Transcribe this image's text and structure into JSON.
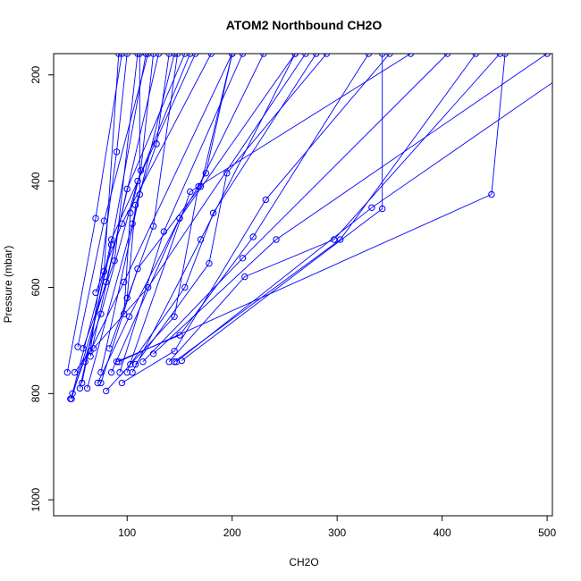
{
  "chart_data": {
    "type": "scatter",
    "title": "ATOM2 Northbound CH2O",
    "xlabel": "CH2O",
    "ylabel": "Pressure (mbar)",
    "xlim": [
      30,
      505
    ],
    "ylim": [
      1030,
      160
    ],
    "y_reversed": true,
    "x_ticks": [
      100,
      200,
      300,
      400,
      500
    ],
    "y_ticks": [
      200,
      400,
      600,
      800,
      1000
    ],
    "grid": false,
    "legend": "none",
    "color": "#0000ff",
    "series": [
      {
        "points": [
          [
            46,
            810
          ],
          [
            75,
            650
          ],
          [
            110,
            400
          ],
          [
            160,
            160
          ]
        ]
      },
      {
        "points": [
          [
            47,
            810
          ],
          [
            80,
            590
          ],
          [
            130,
            160
          ]
        ]
      },
      {
        "points": [
          [
            43,
            760
          ],
          [
            70,
            470
          ],
          [
            95,
            160
          ]
        ]
      },
      {
        "points": [
          [
            50,
            760
          ],
          [
            65,
            720
          ],
          [
            90,
            345
          ],
          [
            100,
            160
          ]
        ]
      },
      {
        "points": [
          [
            48,
            800
          ],
          [
            78,
            570
          ],
          [
            92,
            160
          ]
        ]
      },
      {
        "points": [
          [
            53,
            712
          ],
          [
            78,
            475
          ],
          [
            120,
            160
          ]
        ]
      },
      {
        "points": [
          [
            55,
            790
          ],
          [
            85,
            520
          ],
          [
            118,
            160
          ]
        ]
      },
      {
        "points": [
          [
            57,
            780
          ],
          [
            85,
            510
          ],
          [
            165,
            160
          ]
        ]
      },
      {
        "points": [
          [
            58,
            715
          ],
          [
            88,
            550
          ],
          [
            110,
            160
          ]
        ]
      },
      {
        "points": [
          [
            60,
            740
          ],
          [
            97,
            590
          ],
          [
            200,
            160
          ]
        ]
      },
      {
        "points": [
          [
            62,
            790
          ],
          [
            105,
            480
          ],
          [
            145,
            160
          ]
        ]
      },
      {
        "points": [
          [
            65,
            730
          ],
          [
            100,
            415
          ],
          [
            155,
            160
          ]
        ]
      },
      {
        "points": [
          [
            68,
            715
          ],
          [
            120,
            600
          ],
          [
            270,
            160
          ]
        ]
      },
      {
        "points": [
          [
            70,
            610
          ],
          [
            95,
            480
          ],
          [
            180,
            160
          ]
        ]
      },
      {
        "points": [
          [
            72,
            780
          ],
          [
            102,
            655
          ],
          [
            150,
            470
          ],
          [
            260,
            160
          ]
        ]
      },
      {
        "points": [
          [
            75,
            760
          ],
          [
            112,
            425
          ],
          [
            112,
            160
          ]
        ]
      },
      {
        "points": [
          [
            75,
            780
          ],
          [
            110,
            565
          ],
          [
            170,
            410
          ],
          [
            200,
            160
          ]
        ]
      },
      {
        "points": [
          [
            80,
            795
          ],
          [
            145,
            655
          ],
          [
            168,
            410
          ],
          [
            230,
            160
          ]
        ]
      },
      {
        "points": [
          [
            83,
            715
          ],
          [
            125,
            485
          ],
          [
            148,
            160
          ]
        ]
      },
      {
        "points": [
          [
            85,
            760
          ],
          [
            150,
            470
          ],
          [
            175,
            385
          ],
          [
            200,
            160
          ]
        ]
      },
      {
        "points": [
          [
            90,
            740
          ],
          [
            150,
            690
          ],
          [
            220,
            505
          ],
          [
            330,
            160
          ]
        ]
      },
      {
        "points": [
          [
            93,
            760
          ],
          [
            135,
            495
          ],
          [
            210,
            160
          ]
        ]
      },
      {
        "points": [
          [
            95,
            780
          ],
          [
            145,
            720
          ],
          [
            232,
            435
          ],
          [
            350,
            160
          ]
        ]
      },
      {
        "points": [
          [
            100,
            760
          ],
          [
            160,
            420
          ],
          [
            370,
            160
          ]
        ]
      },
      {
        "points": [
          [
            103,
            745
          ],
          [
            155,
            600
          ],
          [
            182,
            460
          ],
          [
            280,
            160
          ]
        ]
      },
      {
        "points": [
          [
            105,
            760
          ],
          [
            170,
            510
          ],
          [
            260,
            160
          ]
        ]
      },
      {
        "points": [
          [
            108,
            745
          ],
          [
            178,
            555
          ],
          [
            195,
            385
          ],
          [
            290,
            160
          ]
        ]
      },
      {
        "points": [
          [
            115,
            740
          ],
          [
            210,
            545
          ],
          [
            405,
            160
          ]
        ]
      },
      {
        "points": [
          [
            125,
            725
          ],
          [
            242,
            510
          ],
          [
            500,
            160
          ]
        ]
      },
      {
        "points": [
          [
            140,
            740
          ],
          [
            212,
            580
          ],
          [
            297,
            510
          ],
          [
            455,
            160
          ]
        ]
      },
      {
        "points": [
          [
            145,
            740
          ],
          [
            303,
            510
          ],
          [
            432,
            160
          ]
        ]
      },
      {
        "points": [
          [
            147,
            740
          ],
          [
            333,
            450
          ],
          [
            545,
            160
          ]
        ]
      },
      {
        "points": [
          [
            152,
            738
          ],
          [
            343,
            452
          ],
          [
            343,
            160
          ]
        ]
      },
      {
        "points": [
          [
            92,
            740
          ],
          [
            447,
            425
          ],
          [
            460,
            160
          ]
        ]
      },
      {
        "points": [
          [
            97,
            650
          ],
          [
            103,
            460
          ],
          [
            113,
            380
          ],
          [
            125,
            160
          ]
        ]
      },
      {
        "points": [
          [
            100,
            620
          ],
          [
            108,
            445
          ],
          [
            128,
            330
          ],
          [
            140,
            160
          ]
        ]
      }
    ]
  }
}
